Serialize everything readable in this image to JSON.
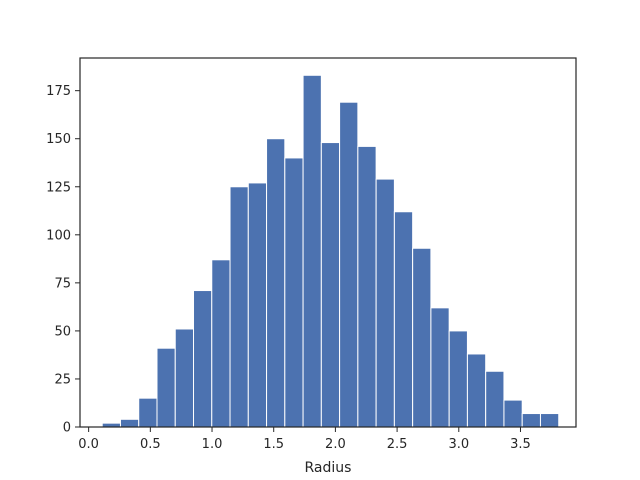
{
  "chart_data": {
    "type": "bar",
    "title": "",
    "xlabel": "Radius",
    "ylabel": "",
    "xlim": [
      -0.07,
      3.95
    ],
    "ylim": [
      0,
      192
    ],
    "grid": false,
    "bar_color": "#4c72b0",
    "x_ticks": [
      0.0,
      0.5,
      1.0,
      1.5,
      2.0,
      2.5,
      3.0,
      3.5
    ],
    "x_tick_labels": [
      "0.0",
      "0.5",
      "1.0",
      "1.5",
      "2.0",
      "2.5",
      "3.0",
      "3.5"
    ],
    "y_ticks": [
      0,
      25,
      50,
      75,
      100,
      125,
      150,
      175
    ],
    "y_tick_labels": [
      "0",
      "25",
      "50",
      "75",
      "100",
      "125",
      "150",
      "175"
    ],
    "bin_edges": [
      0.11,
      0.258,
      0.406,
      0.554,
      0.702,
      0.85,
      0.998,
      1.146,
      1.294,
      1.442,
      1.59,
      1.738,
      1.886,
      2.034,
      2.182,
      2.33,
      2.478,
      2.626,
      2.774,
      2.922,
      3.07,
      3.218,
      3.366,
      3.514,
      3.662,
      3.81
    ],
    "values": [
      2,
      4,
      15,
      41,
      51,
      71,
      87,
      125,
      127,
      150,
      140,
      183,
      148,
      169,
      146,
      129,
      112,
      93,
      62,
      50,
      38,
      29,
      14,
      7,
      7
    ]
  }
}
